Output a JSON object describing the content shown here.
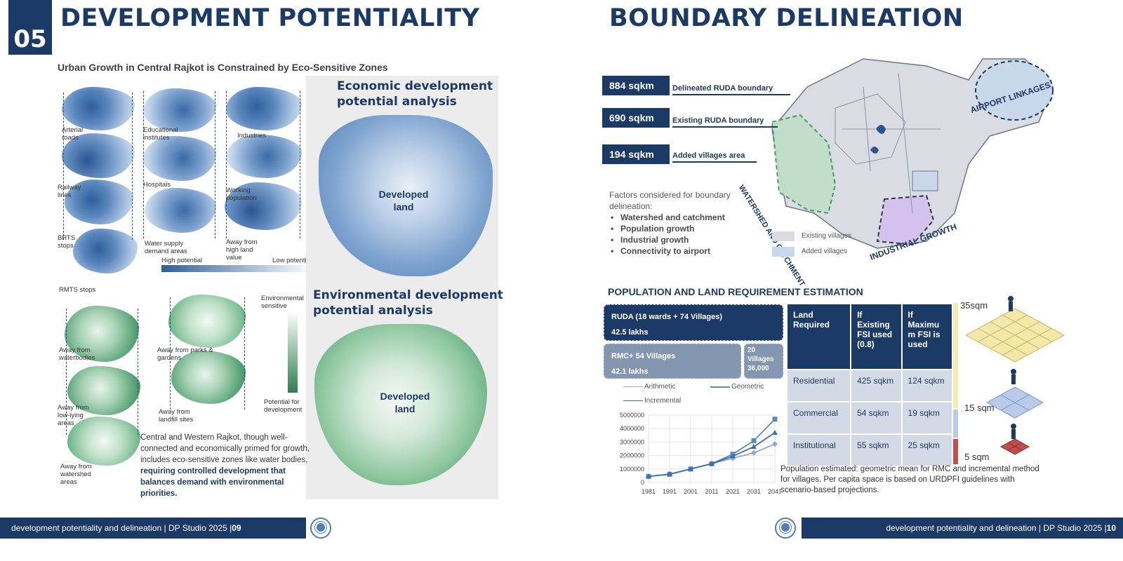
{
  "left": {
    "page_number": "05",
    "title": "DEVELOPMENT POTENTIALITY",
    "subtitle": "Urban Growth in Central Rajkot is Constrained by Eco-Sensitive Zones",
    "economic": {
      "labels": [
        "Arterial roads",
        "Educational institutes",
        "Industries",
        "Railway lines",
        "Hospitals",
        "Working population",
        "BRTS stops",
        "Water supply demand areas",
        "Away from high land value",
        "RMTS stops"
      ],
      "legend_high": "High potential",
      "legend_low": "Low potential",
      "panel_title_1": "Economic development",
      "panel_title_2": "potential analysis",
      "developed_1": "Developed",
      "developed_2": "land"
    },
    "environmental": {
      "labels": [
        "Away from waterbodies",
        "Away from parks & gardens",
        "Away from low-lying areas",
        "Away from landfill sites",
        "Away from watershed areas"
      ],
      "legend_top": "Environmental sensitive",
      "legend_bottom": "Potential for development",
      "panel_title_1": "Environmental development",
      "panel_title_2": "potential analysis",
      "developed_1": "Developed",
      "developed_2": "land"
    },
    "paragraph_plain": "Central and Western Rajkot, though well-connected and economically primed for growth, includes eco-sensitive zones like water bodies, ",
    "paragraph_bold": "requiring controlled development that balances demand with environmental priorities.",
    "footer_text": "development potentiality and delineation | DP Studio 2025 | ",
    "footer_page": "09"
  },
  "right": {
    "title": "BOUNDARY DELINEATION",
    "stats": [
      {
        "value": "884 sqkm",
        "label": "Delineated RUDA boundary"
      },
      {
        "value": "690 sqkm",
        "label": "Existing RUDA boundary"
      },
      {
        "value": "194 sqkm",
        "label": "Added villages area"
      }
    ],
    "factors_intro": "Factors considered for boundary delineation:",
    "factors": [
      "Watershed and catchment",
      "Population growth",
      "Industrial growth",
      "Connectivity to airport"
    ],
    "map_labels": {
      "airport": "AIRPORT LINKAGES",
      "watershed": "WATERSHED AND CATCHMENT",
      "industrial": "INDUSTRIAL GROWTH"
    },
    "map_legend": [
      "Existing villages",
      "Added villages"
    ],
    "pop_title": "POPULATION AND LAND REQUIREMENT ESTIMATION",
    "ruda_box": {
      "line1": "RUDA (18 wards + 74 Villages)",
      "line2": "42.5 lakhs"
    },
    "rmc_box": {
      "line1": "RMC+ 54 Villages",
      "line2": "42.1 lakhs"
    },
    "villages_box": {
      "line1": "20",
      "line2": "Villages",
      "line3": "36,000"
    },
    "chart_legend": [
      "Arithmetic",
      "Geometric",
      "Incremental"
    ],
    "land_table": {
      "headers": [
        "Land Required",
        "If Existing FSI used (0.8)",
        "If Maximu m FSI is used"
      ],
      "rows": [
        [
          "Residential",
          "425 sqkm",
          "124 sqkm"
        ],
        [
          "Commercial",
          "54 sqkm",
          "19 sqkm"
        ],
        [
          "Institutional",
          "55 sqkm",
          "25 sqkm"
        ]
      ]
    },
    "sqm_labels": [
      "35sqm",
      "15 sqm",
      "5 sqm"
    ],
    "note": "Population estimated: geometric mean for RMC and incremental method for villages. Per capita space is based on URDPFI guidelines with scenario-based projections.",
    "footer_text": "development potentiality and delineation | DP Studio 2025 | ",
    "footer_page": "10"
  },
  "colors": {
    "navy": "#1c3a66",
    "blue": "#4f7fb8",
    "green": "#3f8e62"
  },
  "chart_data": {
    "type": "line",
    "x": [
      1981,
      1991,
      2001,
      2011,
      2021,
      2031,
      2041
    ],
    "ylim": [
      0,
      5000000
    ],
    "yticks": [
      0,
      1000000,
      2000000,
      3000000,
      4000000,
      5000000
    ],
    "series": [
      {
        "name": "Arithmetic",
        "values": [
          450000,
          610000,
          1000000,
          1390000,
          1800000,
          2200000,
          2850000
        ]
      },
      {
        "name": "Geometric",
        "values": [
          450000,
          610000,
          1000000,
          1390000,
          2100000,
          3100000,
          4700000
        ]
      },
      {
        "name": "Incremental",
        "values": [
          450000,
          610000,
          1000000,
          1390000,
          1950000,
          2650000,
          3700000
        ]
      }
    ]
  }
}
